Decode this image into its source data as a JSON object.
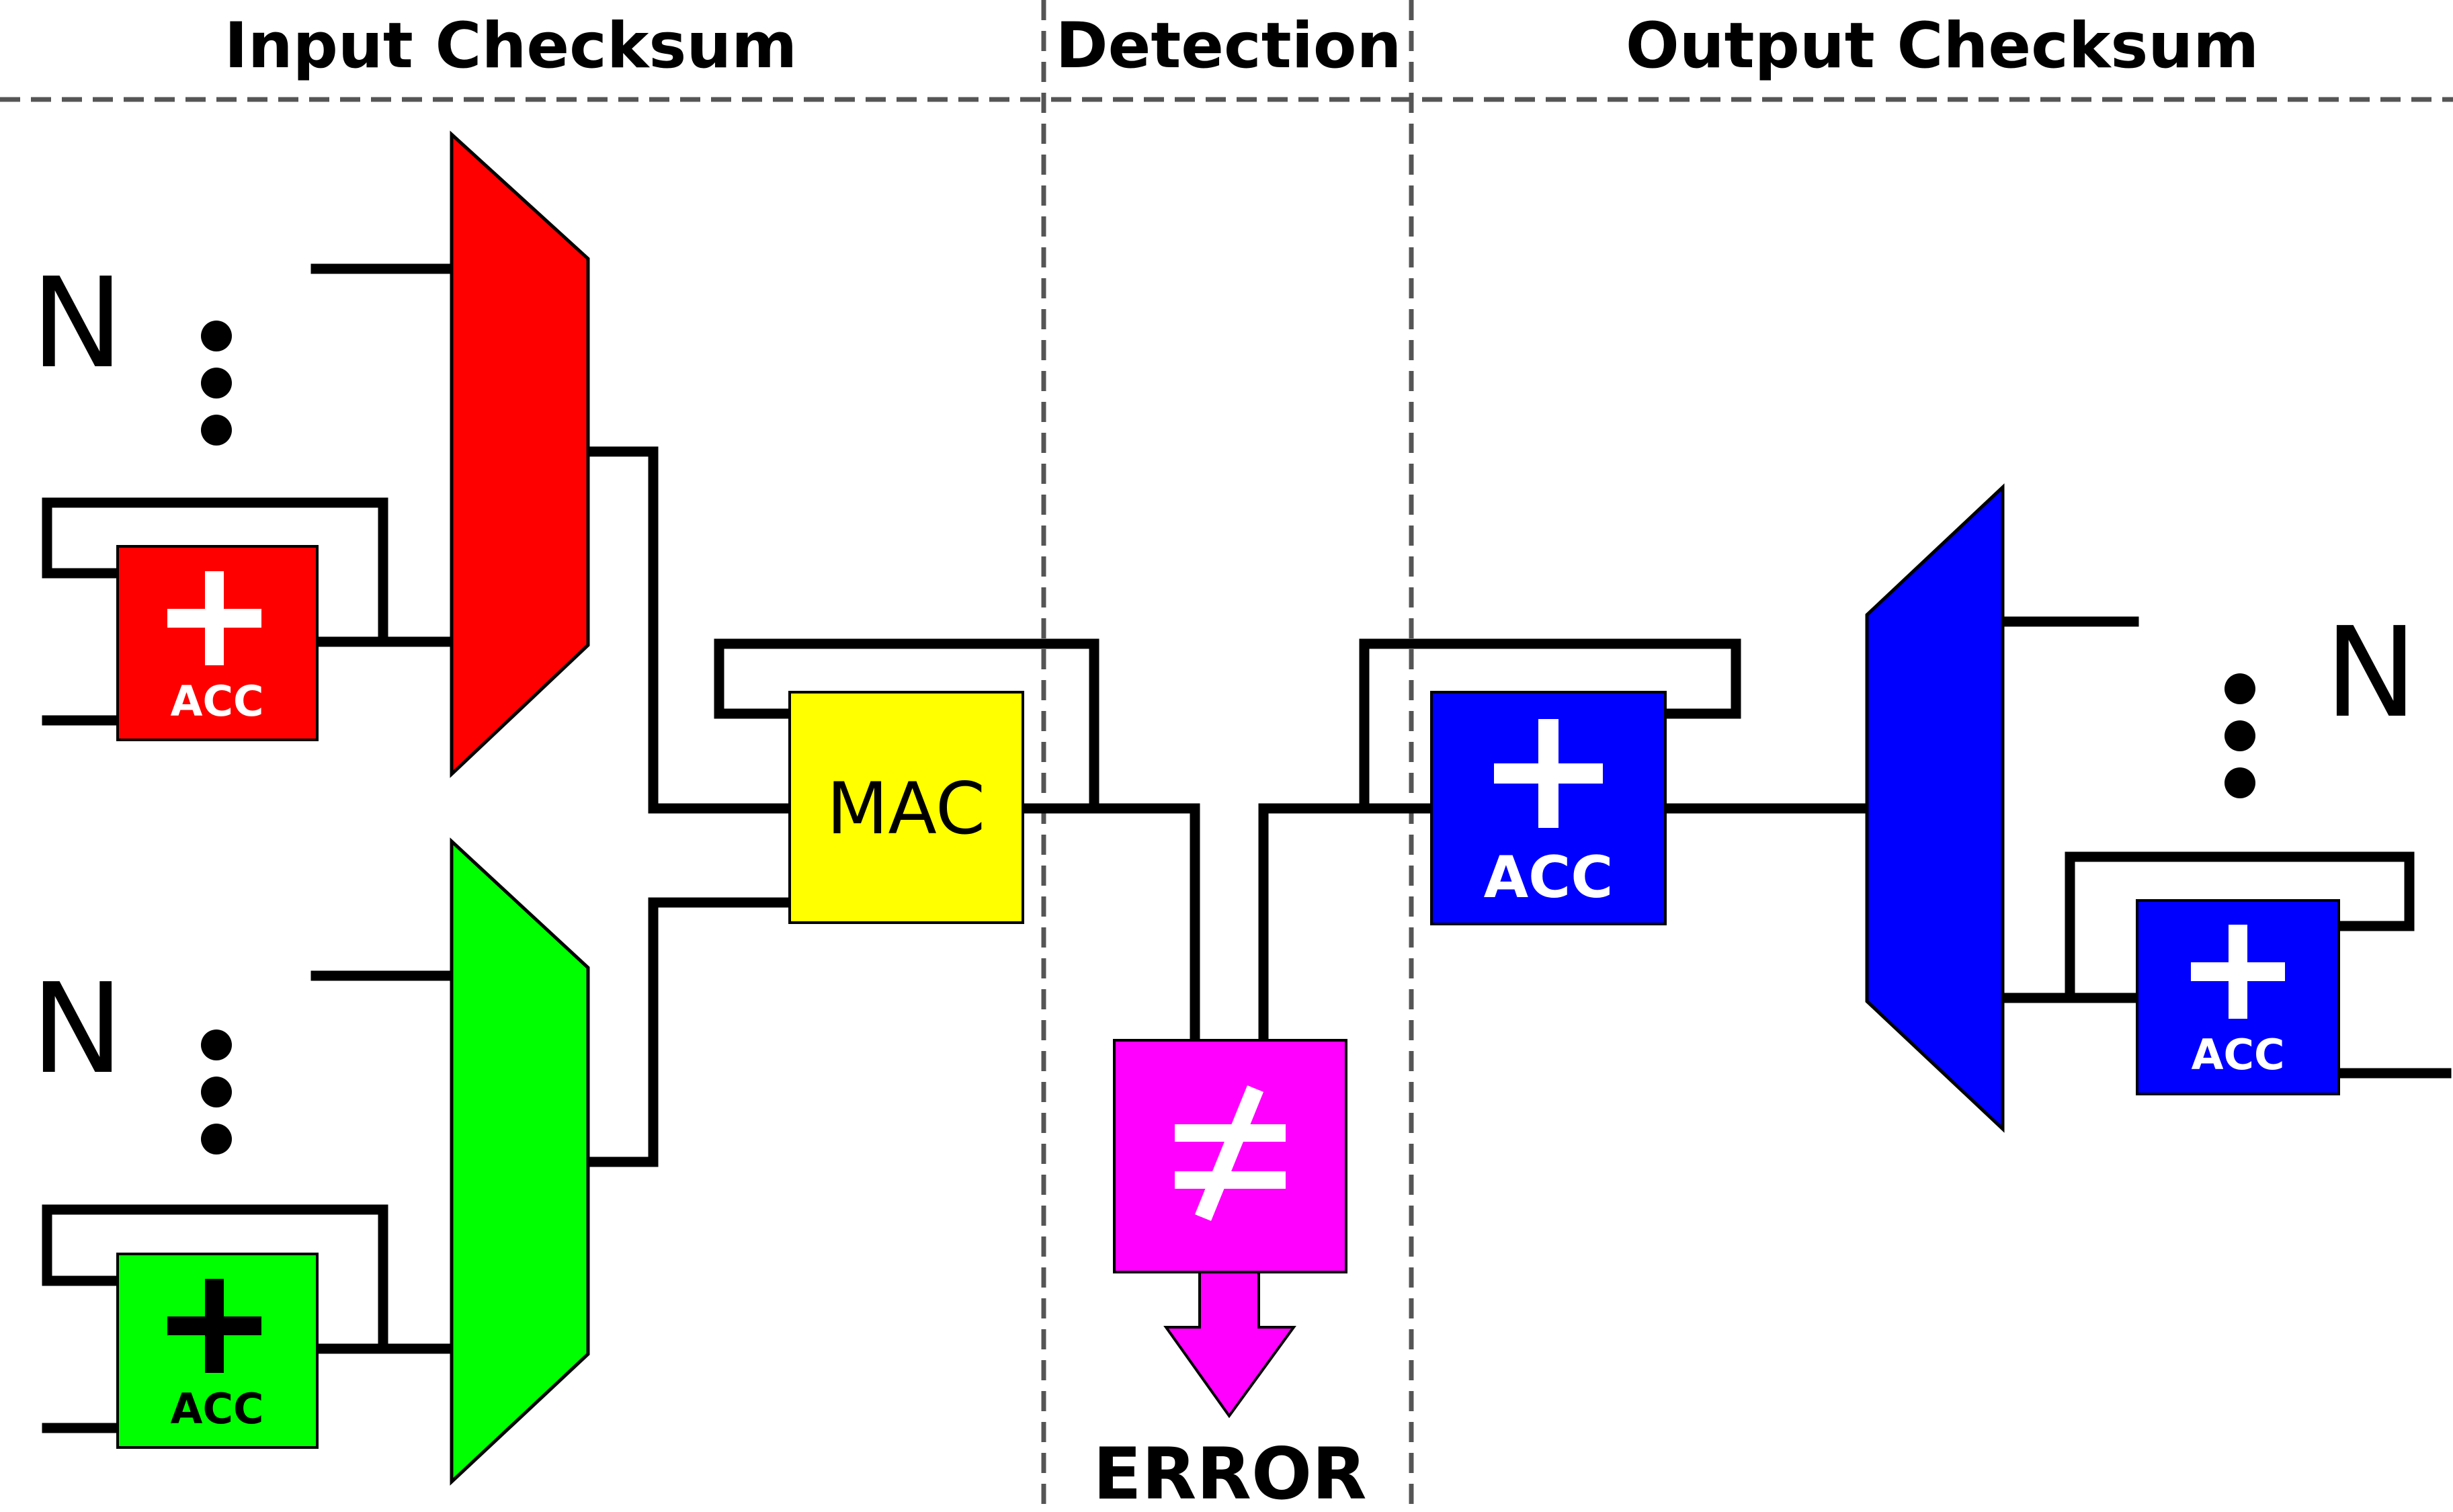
{
  "sections": {
    "input": "Input Checksum",
    "detection": "Detection",
    "output": "Output Checksum"
  },
  "labels": {
    "n_top_left": "N",
    "n_bottom_left": "N",
    "n_right": "N",
    "mac": "MAC",
    "error": "ERROR"
  },
  "accumulators": {
    "red": {
      "symbol": "+",
      "label": "ACC"
    },
    "green": {
      "symbol": "+",
      "label": "ACC"
    },
    "blue_large": {
      "symbol": "+",
      "label": "ACC"
    },
    "blue_small": {
      "symbol": "+",
      "label": "ACC"
    }
  },
  "comparator": {
    "symbol": "≠"
  },
  "colors": {
    "red": "#ff0000",
    "green": "#00ff00",
    "blue": "#0000ff",
    "yellow": "#ffff00",
    "magenta": "#ff00ff"
  }
}
